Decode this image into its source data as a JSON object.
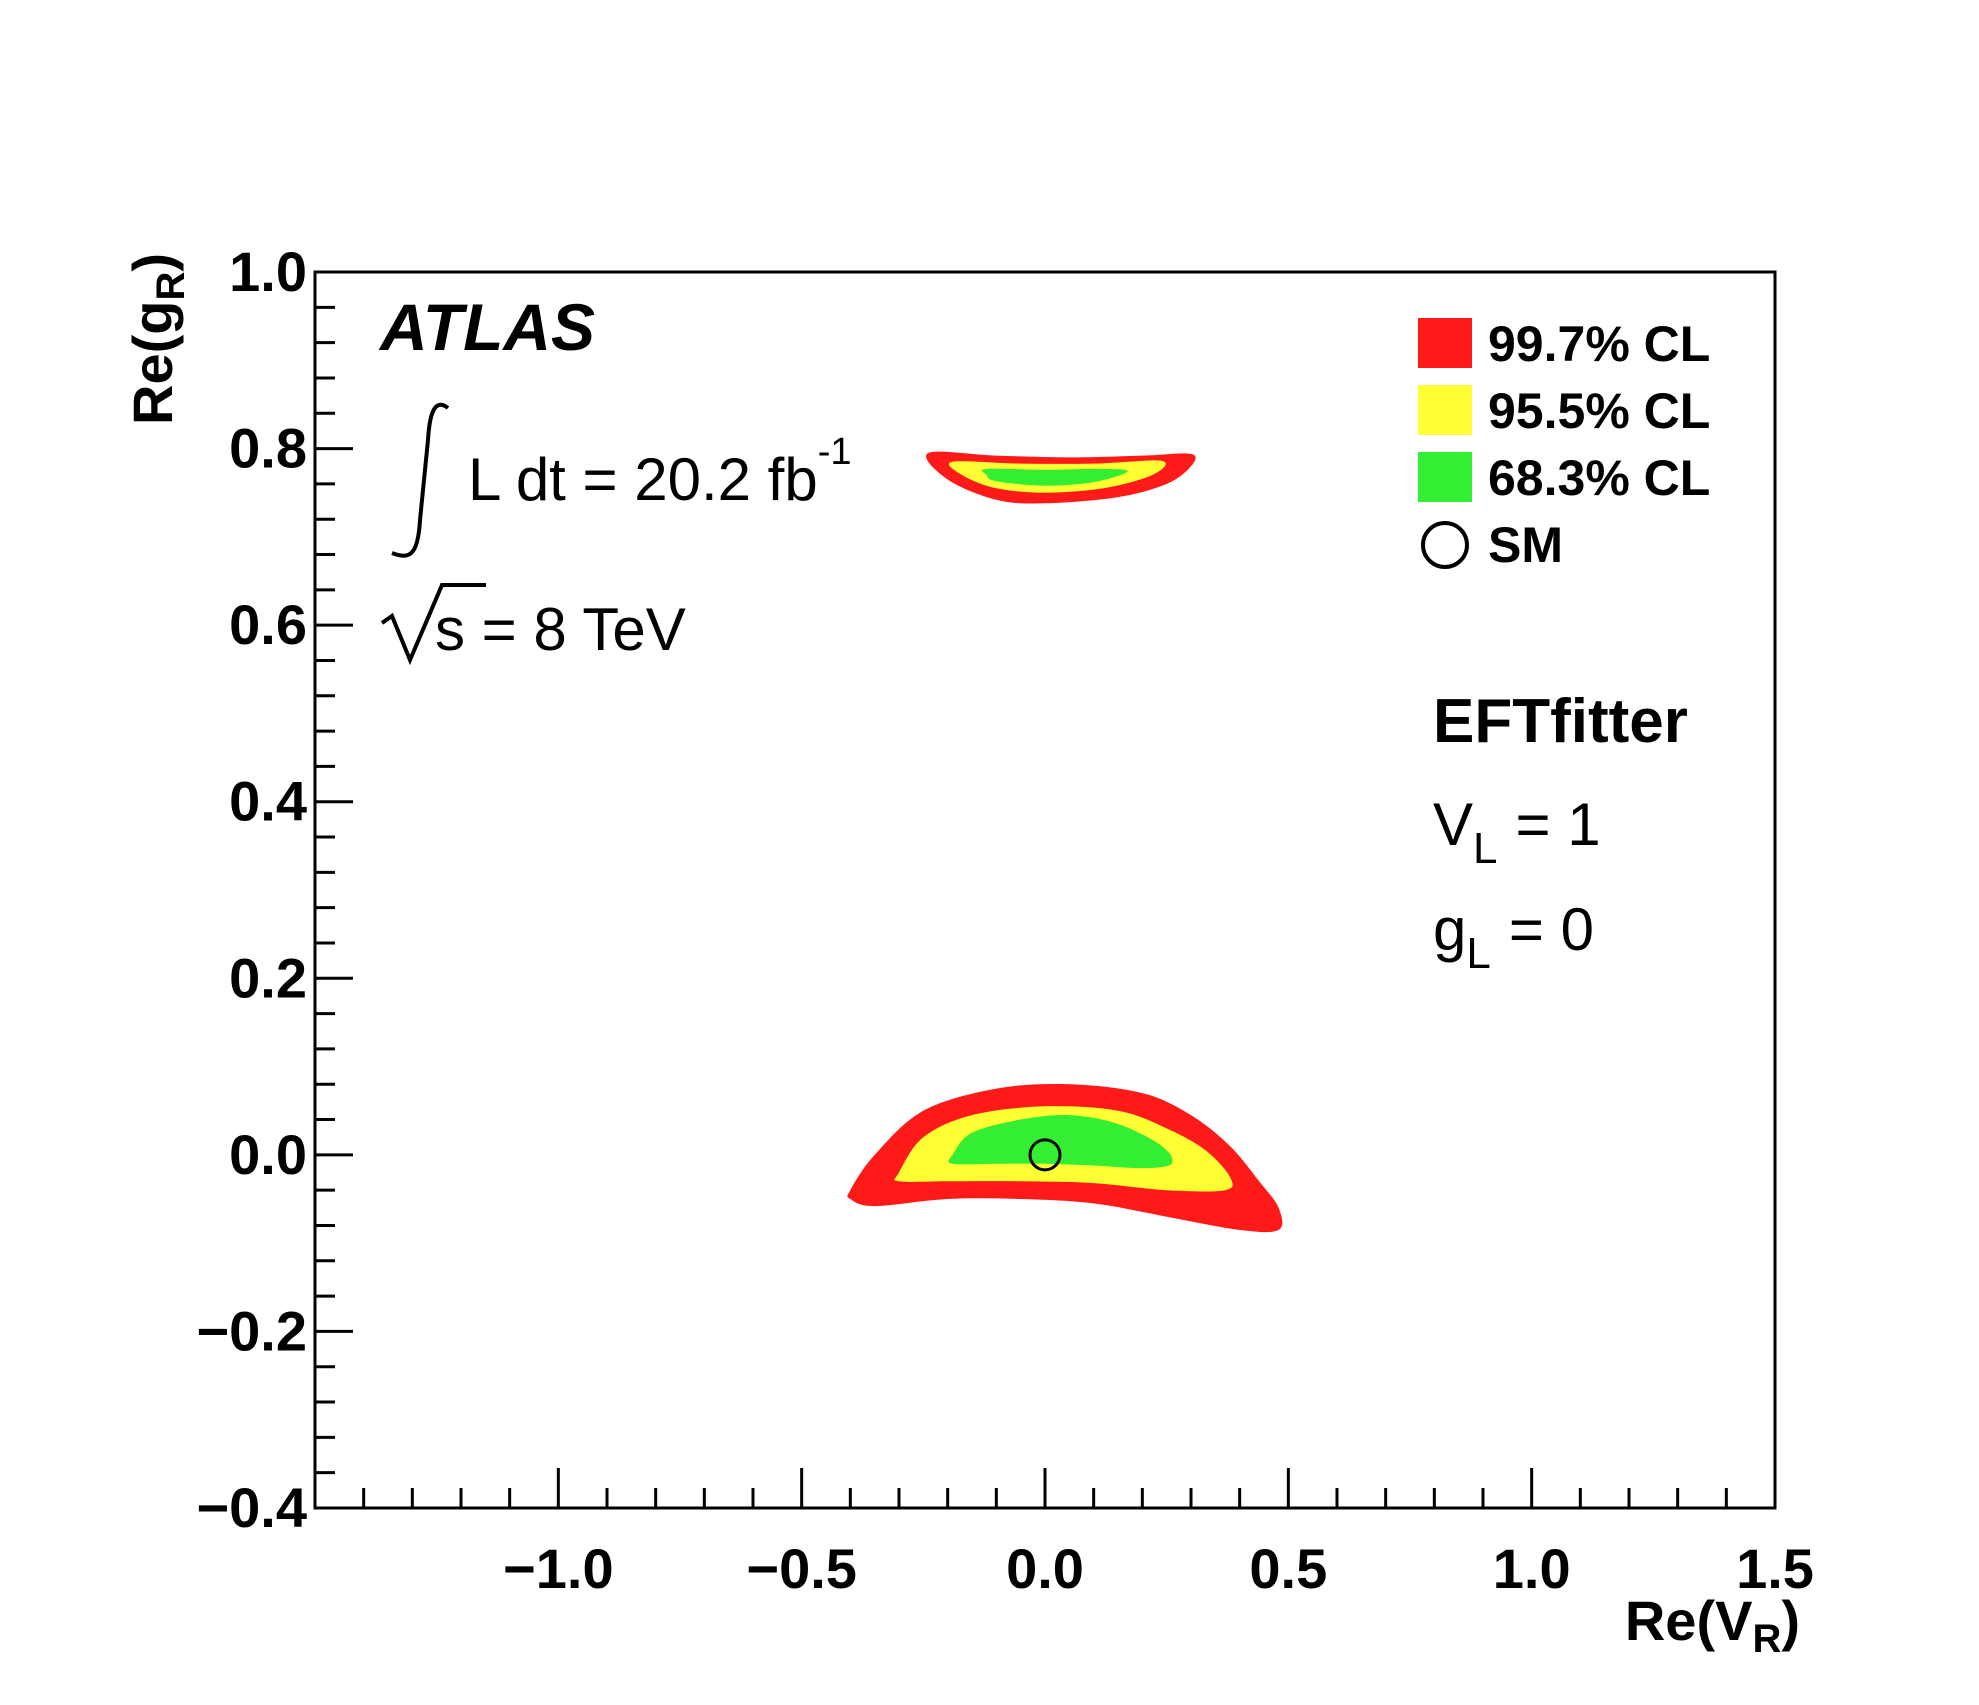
{
  "chart_data": {
    "type": "contour",
    "xlabel": "Re(V_R)",
    "ylabel": "Re(g_R)",
    "xlim": [
      -1.5,
      1.5
    ],
    "ylim": [
      -0.4,
      1.0
    ],
    "xticks": [
      {
        "value": -1.0,
        "label": "−1.0"
      },
      {
        "value": -0.5,
        "label": "−0.5"
      },
      {
        "value": 0.0,
        "label": "0.0"
      },
      {
        "value": 0.5,
        "label": "0.5"
      },
      {
        "value": 1.0,
        "label": "1.0"
      },
      {
        "value": 1.5,
        "label": "1.5"
      }
    ],
    "yticks": [
      {
        "value": -0.4,
        "label": "−0.4"
      },
      {
        "value": -0.2,
        "label": "−0.2"
      },
      {
        "value": 0.0,
        "label": "0.0"
      },
      {
        "value": 0.2,
        "label": "0.2"
      },
      {
        "value": 0.4,
        "label": "0.4"
      },
      {
        "value": 0.6,
        "label": "0.6"
      },
      {
        "value": 0.8,
        "label": "0.8"
      },
      {
        "value": 1.0,
        "label": "1.0"
      }
    ],
    "legend_position": "top-right",
    "legend": [
      {
        "label": "99.7% CL",
        "color": "#ff1a1a"
      },
      {
        "label": "95.5% CL",
        "color": "#ffff33"
      },
      {
        "label": "68.3% CL",
        "color": "#33ee33"
      },
      {
        "label": "SM",
        "marker": "open-circle"
      }
    ],
    "annotations": {
      "experiment": "ATLAS",
      "lumi_text": "L dt = 20.2 fb",
      "lumi_sup": "-1",
      "energy_text": "s = 8 TeV",
      "tool": "EFTfitter",
      "condition1": {
        "base": "V",
        "sub": "L",
        "rest": "= 1"
      },
      "condition2": {
        "base": "g",
        "sub": "L",
        "rest": "= 0"
      }
    },
    "sm_point": {
      "x": 0.0,
      "y": 0.0
    },
    "regions": [
      {
        "name": "lower-region",
        "levels": [
          {
            "cl": "99.7% CL",
            "color": "#ff1a1a",
            "outline": [
              [
                -0.4,
                -0.04
              ],
              [
                -0.35,
                0.0
              ],
              [
                -0.25,
                0.05
              ],
              [
                -0.1,
                0.075
              ],
              [
                0.05,
                0.08
              ],
              [
                0.2,
                0.07
              ],
              [
                0.3,
                0.045
              ],
              [
                0.38,
                0.01
              ],
              [
                0.44,
                -0.03
              ],
              [
                0.48,
                -0.06
              ],
              [
                0.48,
                -0.085
              ],
              [
                0.4,
                -0.085
              ],
              [
                0.25,
                -0.07
              ],
              [
                0.1,
                -0.055
              ],
              [
                -0.05,
                -0.05
              ],
              [
                -0.2,
                -0.05
              ],
              [
                -0.35,
                -0.058
              ],
              [
                -0.4,
                -0.05
              ]
            ]
          },
          {
            "cl": "95.5% CL",
            "color": "#ffff33",
            "outline": [
              [
                -0.3,
                -0.02
              ],
              [
                -0.25,
                0.02
              ],
              [
                -0.15,
                0.045
              ],
              [
                0.0,
                0.055
              ],
              [
                0.15,
                0.05
              ],
              [
                0.25,
                0.03
              ],
              [
                0.33,
                0.005
              ],
              [
                0.38,
                -0.025
              ],
              [
                0.37,
                -0.04
              ],
              [
                0.25,
                -0.04
              ],
              [
                0.1,
                -0.032
              ],
              [
                -0.05,
                -0.03
              ],
              [
                -0.2,
                -0.03
              ],
              [
                -0.3,
                -0.03
              ]
            ]
          },
          {
            "cl": "68.3% CL",
            "color": "#33ee33",
            "outline": [
              [
                -0.19,
                0.0
              ],
              [
                -0.15,
                0.025
              ],
              [
                -0.05,
                0.04
              ],
              [
                0.05,
                0.045
              ],
              [
                0.15,
                0.035
              ],
              [
                0.24,
                0.01
              ],
              [
                0.26,
                -0.01
              ],
              [
                0.2,
                -0.015
              ],
              [
                0.1,
                -0.012
              ],
              [
                0.0,
                -0.01
              ],
              [
                -0.1,
                -0.01
              ],
              [
                -0.19,
                -0.01
              ]
            ]
          }
        ]
      },
      {
        "name": "upper-region",
        "levels": [
          {
            "cl": "99.7% CL",
            "color": "#ff1a1a",
            "outline": [
              [
                -0.24,
                0.795
              ],
              [
                -0.1,
                0.792
              ],
              [
                0.05,
                0.79
              ],
              [
                0.2,
                0.792
              ],
              [
                0.3,
                0.794
              ],
              [
                0.3,
                0.78
              ],
              [
                0.25,
                0.76
              ],
              [
                0.15,
                0.745
              ],
              [
                0.0,
                0.738
              ],
              [
                -0.1,
                0.742
              ],
              [
                -0.2,
                0.765
              ]
            ]
          },
          {
            "cl": "95.5% CL",
            "color": "#ffff33",
            "outline": [
              [
                -0.19,
                0.785
              ],
              [
                -0.05,
                0.783
              ],
              [
                0.1,
                0.783
              ],
              [
                0.24,
                0.786
              ],
              [
                0.22,
                0.77
              ],
              [
                0.12,
                0.755
              ],
              [
                0.0,
                0.75
              ],
              [
                -0.1,
                0.755
              ],
              [
                -0.17,
                0.77
              ]
            ]
          },
          {
            "cl": "68.3% CL",
            "color": "#33ee33",
            "outline": [
              [
                -0.12,
                0.777
              ],
              [
                0.0,
                0.776
              ],
              [
                0.12,
                0.777
              ],
              [
                0.17,
                0.774
              ],
              [
                0.1,
                0.762
              ],
              [
                0.0,
                0.758
              ],
              [
                -0.1,
                0.763
              ],
              [
                -0.12,
                0.77
              ]
            ]
          }
        ]
      }
    ]
  }
}
